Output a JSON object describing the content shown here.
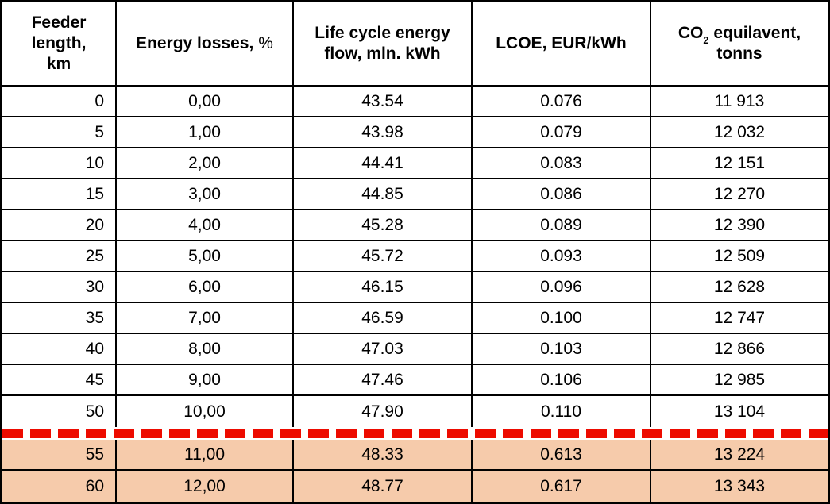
{
  "colors": {
    "highlight_row": "#f6cbab",
    "divider_red": "#ed0b00",
    "border": "#000000",
    "text": "#000000",
    "background": "#ffffff"
  },
  "header": {
    "col1": {
      "line1": "Feeder",
      "line2": "length,",
      "line3": "km"
    },
    "col2": {
      "bold": "Energy losses,",
      "light": "%"
    },
    "col3": {
      "line1": "Life cycle energy",
      "line2": "flow, mln. kWh"
    },
    "col4": {
      "text": "LCOE, EUR/kWh"
    },
    "col5": {
      "prefix": "CO",
      "subscript": "2",
      "suffix": "equilavent,",
      "line2": "tonns"
    }
  },
  "chart_data": {
    "type": "table",
    "columns": [
      "Feeder length, km",
      "Energy losses, %",
      "Life cycle energy flow, mln. kWh",
      "LCOE, EUR/kWh",
      "CO₂ equilavent, tonns"
    ],
    "rows": [
      [
        "0",
        "0,00",
        "43.54",
        "0.076",
        "11 913"
      ],
      [
        "5",
        "1,00",
        "43.98",
        "0.079",
        "12 032"
      ],
      [
        "10",
        "2,00",
        "44.41",
        "0.083",
        "12 151"
      ],
      [
        "15",
        "3,00",
        "44.85",
        "0.086",
        "12 270"
      ],
      [
        "20",
        "4,00",
        "45.28",
        "0.089",
        "12 390"
      ],
      [
        "25",
        "5,00",
        "45.72",
        "0.093",
        "12 509"
      ],
      [
        "30",
        "6,00",
        "46.15",
        "0.096",
        "12 628"
      ],
      [
        "35",
        "7,00",
        "46.59",
        "0.100",
        "12 747"
      ],
      [
        "40",
        "8,00",
        "47.03",
        "0.103",
        "12 866"
      ],
      [
        "45",
        "9,00",
        "47.46",
        "0.106",
        "12 985"
      ],
      [
        "50",
        "10,00",
        "47.90",
        "0.110",
        "13 104"
      ],
      [
        "55",
        "11,00",
        "48.33",
        "0.613",
        "13 224"
      ],
      [
        "60",
        "12,00",
        "48.77",
        "0.617",
        "13 343"
      ]
    ],
    "highlighted_row_indexes": [
      11,
      12
    ],
    "red_dashed_divider_after_row_index": 10,
    "grid": "on",
    "legend": "none"
  }
}
